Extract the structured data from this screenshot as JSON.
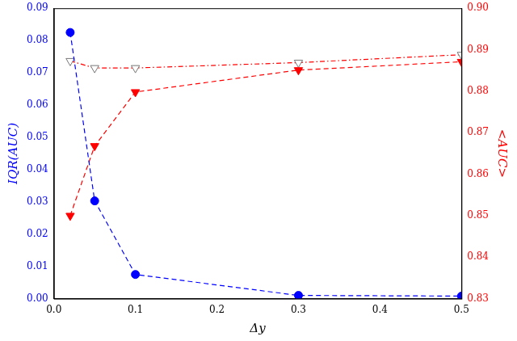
{
  "chart_data": {
    "type": "line",
    "x_label": "Δy",
    "y_label": "IQR(AUC)",
    "y2_label": "<AUC>",
    "x": [
      0.02,
      0.05,
      0.1,
      0.3,
      0.5
    ],
    "xlim": [
      0,
      0.5
    ],
    "xticks": [
      {
        "value": 0,
        "label": "0.0"
      },
      0.1,
      0.2,
      0.3,
      0.4,
      0.5
    ],
    "ylim": [
      0,
      0.09
    ],
    "yticks": [
      {
        "value": 0,
        "label": "0.00"
      },
      0.01,
      0.02,
      0.03,
      0.04,
      0.05,
      0.06,
      0.07,
      0.08,
      0.09
    ],
    "y2lim": [
      0.83,
      0.9
    ],
    "y2ticks": [
      0.83,
      0.84,
      0.85,
      0.86,
      0.87,
      0.88,
      0.89,
      {
        "value": 0.9,
        "label": "0.90"
      }
    ],
    "grid": false,
    "series": [
      {
        "color": "#0000ff",
        "marker": "circle",
        "line_style": "dashed",
        "values": [
          0.0825,
          0.0303,
          0.0075,
          0.001,
          0.0008
        ]
      },
      {
        "axis": "y2",
        "color": "#ff0000",
        "marker": "triangle_down",
        "line_style": "dashed",
        "values": [
          0.85,
          0.8668,
          0.8798,
          0.8851,
          0.8871
        ]
      },
      {
        "axis": "y2",
        "color": "#ff0000",
        "marker": "open_triangle_down",
        "line_style": "dashdot",
        "values": [
          0.8873,
          0.8856,
          0.8856,
          0.8869,
          0.8888
        ]
      }
    ]
  }
}
